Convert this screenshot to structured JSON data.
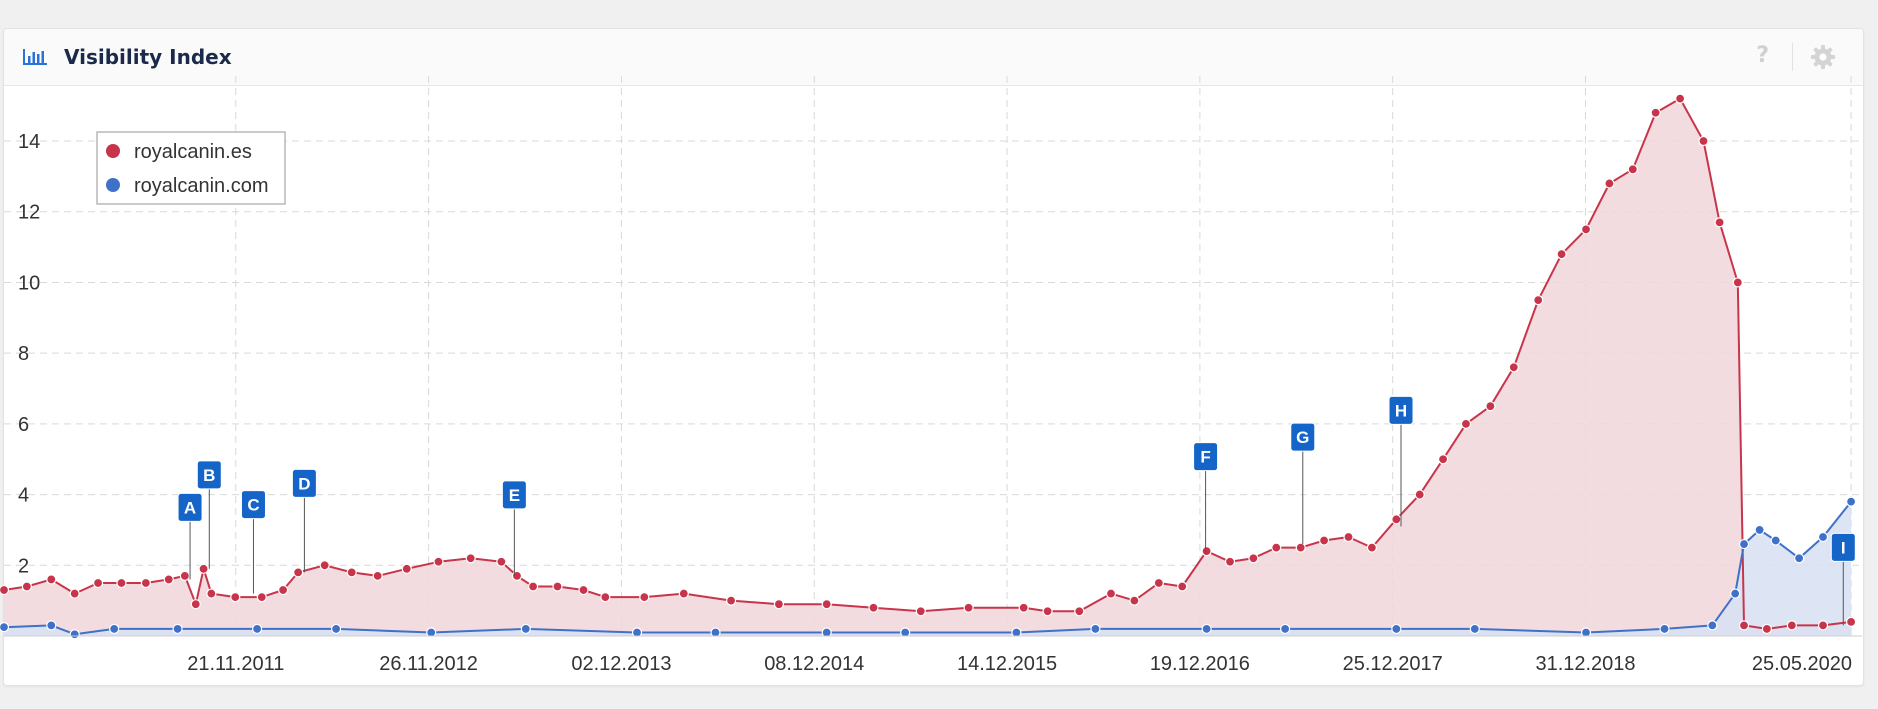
{
  "widget": {
    "title": "Visibility Index",
    "header_icon": "bar-chart-icon",
    "help_label": "?",
    "help_icon": "help-icon",
    "settings_icon": "gear-icon"
  },
  "colors": {
    "es": "#c8354b",
    "es_fill": "#f1d6da",
    "com": "#3f71c8",
    "com_fill": "#d9e1f3",
    "event": "#1565c8",
    "grid": "#d9d9d9"
  },
  "chart_data": {
    "type": "area",
    "title": "Visibility Index",
    "xlabel": "",
    "ylabel": "",
    "x_axis": "date",
    "x_range": [
      "2010-09-01",
      "2020-06-15"
    ],
    "ylim": [
      0,
      15.5
    ],
    "y_ticks": [
      2,
      4,
      6,
      8,
      10,
      12,
      14
    ],
    "x_ticks": [
      "21.11.2011",
      "26.11.2012",
      "02.12.2013",
      "08.12.2014",
      "14.12.2015",
      "19.12.2016",
      "25.12.2017",
      "31.12.2018",
      "25.05.2020"
    ],
    "x_tick_dates": [
      "2011-11-21",
      "2012-11-26",
      "2013-12-02",
      "2014-12-08",
      "2015-12-14",
      "2016-12-19",
      "2017-12-25",
      "2018-12-31",
      "2020-05-25"
    ],
    "grid": true,
    "legend_position": "top-left",
    "series": [
      {
        "name": "royalcanin.es",
        "color": "#c8354b",
        "points": [
          [
            "2010-09-01",
            1.3
          ],
          [
            "2010-10-15",
            1.4
          ],
          [
            "2010-12-01",
            1.6
          ],
          [
            "2011-01-15",
            1.2
          ],
          [
            "2011-03-01",
            1.5
          ],
          [
            "2011-04-15",
            1.5
          ],
          [
            "2011-06-01",
            1.5
          ],
          [
            "2011-07-15",
            1.6
          ],
          [
            "2011-08-15",
            1.7
          ],
          [
            "2011-09-05",
            0.9
          ],
          [
            "2011-09-20",
            1.9
          ],
          [
            "2011-10-05",
            1.2
          ],
          [
            "2011-11-20",
            1.1
          ],
          [
            "2012-01-10",
            1.1
          ],
          [
            "2012-02-20",
            1.3
          ],
          [
            "2012-03-20",
            1.8
          ],
          [
            "2012-05-10",
            2.0
          ],
          [
            "2012-07-01",
            1.8
          ],
          [
            "2012-08-20",
            1.7
          ],
          [
            "2012-10-15",
            1.9
          ],
          [
            "2012-12-15",
            2.1
          ],
          [
            "2013-02-15",
            2.2
          ],
          [
            "2013-04-15",
            2.1
          ],
          [
            "2013-05-15",
            1.7
          ],
          [
            "2013-06-15",
            1.4
          ],
          [
            "2013-08-01",
            1.4
          ],
          [
            "2013-09-20",
            1.3
          ],
          [
            "2013-11-01",
            1.1
          ],
          [
            "2014-01-15",
            1.1
          ],
          [
            "2014-04-01",
            1.2
          ],
          [
            "2014-07-01",
            1.0
          ],
          [
            "2014-10-01",
            0.9
          ],
          [
            "2015-01-01",
            0.9
          ],
          [
            "2015-04-01",
            0.8
          ],
          [
            "2015-07-01",
            0.7
          ],
          [
            "2015-10-01",
            0.8
          ],
          [
            "2016-01-15",
            0.8
          ],
          [
            "2016-03-01",
            0.7
          ],
          [
            "2016-05-01",
            0.7
          ],
          [
            "2016-07-01",
            1.2
          ],
          [
            "2016-08-15",
            1.0
          ],
          [
            "2016-10-01",
            1.5
          ],
          [
            "2016-11-15",
            1.4
          ],
          [
            "2017-01-01",
            2.4
          ],
          [
            "2017-02-15",
            2.1
          ],
          [
            "2017-04-01",
            2.2
          ],
          [
            "2017-05-15",
            2.5
          ],
          [
            "2017-07-01",
            2.5
          ],
          [
            "2017-08-15",
            2.7
          ],
          [
            "2017-10-01",
            2.8
          ],
          [
            "2017-11-15",
            2.5
          ],
          [
            "2018-01-01",
            3.3
          ],
          [
            "2018-02-15",
            4.0
          ],
          [
            "2018-04-01",
            5.0
          ],
          [
            "2018-05-15",
            6.0
          ],
          [
            "2018-07-01",
            6.5
          ],
          [
            "2018-08-15",
            7.6
          ],
          [
            "2018-10-01",
            9.5
          ],
          [
            "2018-11-15",
            10.8
          ],
          [
            "2019-01-01",
            11.5
          ],
          [
            "2019-02-15",
            12.8
          ],
          [
            "2019-04-01",
            13.2
          ],
          [
            "2019-05-15",
            14.8
          ],
          [
            "2019-07-01",
            15.2
          ],
          [
            "2019-08-15",
            14.0
          ],
          [
            "2019-09-15",
            11.7
          ],
          [
            "2019-10-20",
            10.0
          ],
          [
            "2019-11-01",
            0.3
          ],
          [
            "2019-12-15",
            0.2
          ],
          [
            "2020-02-01",
            0.3
          ],
          [
            "2020-04-01",
            0.3
          ],
          [
            "2020-05-25",
            0.4
          ]
        ]
      },
      {
        "name": "royalcanin.com",
        "color": "#3f71c8",
        "points": [
          [
            "2010-09-01",
            0.25
          ],
          [
            "2010-12-01",
            0.3
          ],
          [
            "2011-01-15",
            0.05
          ],
          [
            "2011-04-01",
            0.2
          ],
          [
            "2011-08-01",
            0.2
          ],
          [
            "2012-01-01",
            0.2
          ],
          [
            "2012-06-01",
            0.2
          ],
          [
            "2012-12-01",
            0.1
          ],
          [
            "2013-06-01",
            0.2
          ],
          [
            "2014-01-01",
            0.1
          ],
          [
            "2014-06-01",
            0.1
          ],
          [
            "2015-01-01",
            0.1
          ],
          [
            "2015-06-01",
            0.1
          ],
          [
            "2016-01-01",
            0.1
          ],
          [
            "2016-06-01",
            0.2
          ],
          [
            "2017-01-01",
            0.2
          ],
          [
            "2017-06-01",
            0.2
          ],
          [
            "2018-01-01",
            0.2
          ],
          [
            "2018-06-01",
            0.2
          ],
          [
            "2019-01-01",
            0.1
          ],
          [
            "2019-06-01",
            0.2
          ],
          [
            "2019-09-01",
            0.3
          ],
          [
            "2019-10-15",
            1.2
          ],
          [
            "2019-11-01",
            2.6
          ],
          [
            "2019-12-01",
            3.0
          ],
          [
            "2020-01-01",
            2.7
          ],
          [
            "2020-02-15",
            2.2
          ],
          [
            "2020-04-01",
            2.8
          ],
          [
            "2020-05-25",
            3.8
          ]
        ]
      }
    ],
    "events": [
      {
        "label": "A",
        "date": "2011-08-25",
        "value": 1.6,
        "stem": 58
      },
      {
        "label": "B",
        "date": "2011-10-01",
        "value": 1.9,
        "stem": 80
      },
      {
        "label": "C",
        "date": "2011-12-25",
        "value": 1.2,
        "stem": 75
      },
      {
        "label": "D",
        "date": "2012-04-01",
        "value": 1.8,
        "stem": 75
      },
      {
        "label": "E",
        "date": "2013-05-10",
        "value": 1.7,
        "stem": 67
      },
      {
        "label": "F",
        "date": "2016-12-30",
        "value": 2.3,
        "stem": 84
      },
      {
        "label": "G",
        "date": "2017-07-05",
        "value": 2.6,
        "stem": 93
      },
      {
        "label": "H",
        "date": "2018-01-10",
        "value": 3.1,
        "stem": 102
      },
      {
        "label": "I",
        "date": "2020-05-10",
        "value": 0.3,
        "stem": 64
      }
    ]
  }
}
